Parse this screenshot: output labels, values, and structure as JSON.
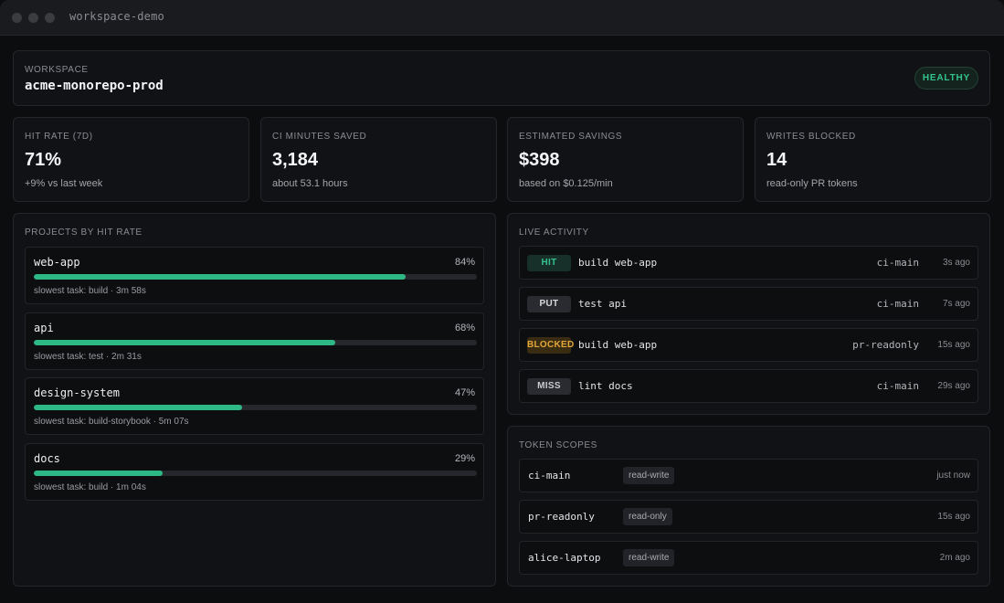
{
  "window": {
    "title": "workspace-demo"
  },
  "workspace": {
    "label": "WORKSPACE",
    "name": "acme-monorepo-prod",
    "status": "HEALTHY",
    "status_color": "#34c48f"
  },
  "stats": [
    {
      "label": "HIT RATE (7D)",
      "value": "71%",
      "sub": "+9% vs last week"
    },
    {
      "label": "CI MINUTES SAVED",
      "value": "3,184",
      "sub": "about 53.1 hours"
    },
    {
      "label": "ESTIMATED SAVINGS",
      "value": "$398",
      "sub": "based on $0.125/min"
    },
    {
      "label": "WRITES BLOCKED",
      "value": "14",
      "sub": "read-only PR tokens"
    }
  ],
  "projects": {
    "label": "PROJECTS BY HIT RATE",
    "items": [
      {
        "name": "web-app",
        "pct_label": "84%",
        "pct": 84,
        "slowest": "slowest task: build · 3m 58s"
      },
      {
        "name": "api",
        "pct_label": "68%",
        "pct": 68,
        "slowest": "slowest task: test · 2m 31s"
      },
      {
        "name": "design-system",
        "pct_label": "47%",
        "pct": 47,
        "slowest": "slowest task: build-storybook · 5m 07s"
      },
      {
        "name": "docs",
        "pct_label": "29%",
        "pct": 29,
        "slowest": "slowest task: build · 1m 04s"
      }
    ]
  },
  "activity": {
    "label": "LIVE ACTIVITY",
    "items": [
      {
        "badge": "HIT",
        "kind": "hit",
        "task": "build web-app",
        "token": "ci-main",
        "time": "3s ago"
      },
      {
        "badge": "PUT",
        "kind": "put",
        "task": "test api",
        "token": "ci-main",
        "time": "7s ago"
      },
      {
        "badge": "BLOCKED",
        "kind": "blocked",
        "task": "build web-app",
        "token": "pr-readonly",
        "time": "15s ago"
      },
      {
        "badge": "MISS",
        "kind": "miss",
        "task": "lint docs",
        "token": "ci-main",
        "time": "29s ago"
      }
    ]
  },
  "tokens": {
    "label": "TOKEN SCOPES",
    "items": [
      {
        "name": "ci-main",
        "scope": "read-write",
        "time": "just now"
      },
      {
        "name": "pr-readonly",
        "scope": "read-only",
        "time": "15s ago"
      },
      {
        "name": "alice-laptop",
        "scope": "read-write",
        "time": "2m ago"
      }
    ]
  }
}
